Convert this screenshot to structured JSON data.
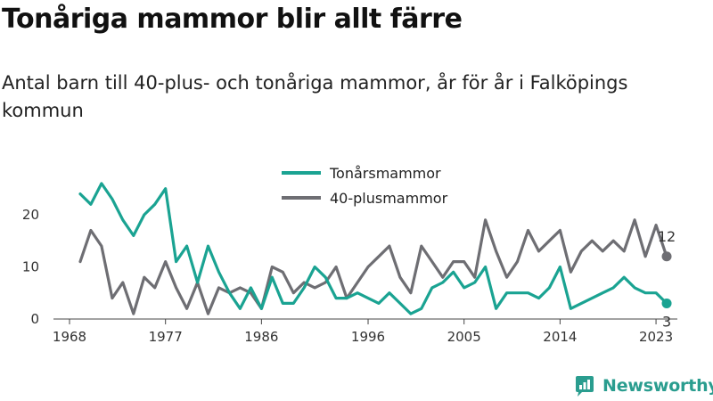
{
  "title": "Tonåriga mammor blir allt färre",
  "subtitle": "Antal barn till 40-plus- och tonåriga mammor, år för år i Falköpings kommun",
  "brand": {
    "name": "Newsworthy",
    "icon": "bar-chart-logo-icon",
    "color": "#2a9d8f"
  },
  "chart_data": {
    "type": "line",
    "x": [
      1969,
      1970,
      1971,
      1972,
      1973,
      1974,
      1975,
      1976,
      1977,
      1978,
      1979,
      1980,
      1981,
      1982,
      1983,
      1984,
      1985,
      1986,
      1987,
      1988,
      1989,
      1990,
      1991,
      1992,
      1993,
      1994,
      1995,
      1996,
      1997,
      1998,
      1999,
      2000,
      2001,
      2002,
      2003,
      2004,
      2005,
      2006,
      2007,
      2008,
      2009,
      2010,
      2011,
      2012,
      2013,
      2014,
      2015,
      2016,
      2017,
      2018,
      2019,
      2020,
      2021,
      2022,
      2023,
      2024
    ],
    "series": [
      {
        "name": "Tonårsmammor",
        "color": "#1aa392",
        "values": [
          24,
          22,
          26,
          23,
          19,
          16,
          20,
          22,
          25,
          11,
          14,
          7,
          14,
          9,
          5,
          2,
          6,
          2,
          8,
          3,
          3,
          6,
          10,
          8,
          4,
          4,
          5,
          4,
          3,
          5,
          3,
          1,
          2,
          6,
          7,
          9,
          6,
          7,
          10,
          2,
          5,
          5,
          5,
          4,
          6,
          10,
          2,
          3,
          4,
          5,
          6,
          8,
          6,
          5,
          5,
          3
        ]
      },
      {
        "name": "40-plusmammor",
        "color": "#6e6e73",
        "values": [
          11,
          17,
          14,
          4,
          7,
          1,
          8,
          6,
          11,
          6,
          2,
          7,
          1,
          6,
          5,
          6,
          5,
          2,
          10,
          9,
          5,
          7,
          6,
          7,
          10,
          4,
          7,
          10,
          12,
          14,
          8,
          5,
          14,
          11,
          8,
          11,
          11,
          8,
          19,
          13,
          8,
          11,
          17,
          13,
          15,
          17,
          9,
          13,
          15,
          13,
          15,
          13,
          19,
          12,
          18,
          12
        ]
      }
    ],
    "end_labels": [
      "3",
      "12"
    ],
    "x_ticks": [
      1968,
      1977,
      1986,
      1996,
      2005,
      2014,
      2023
    ],
    "y_ticks": [
      0,
      10,
      20
    ],
    "ylim": [
      0,
      27
    ],
    "xlim": [
      1968,
      2025
    ],
    "grid": false,
    "legend_position": "top-center"
  }
}
